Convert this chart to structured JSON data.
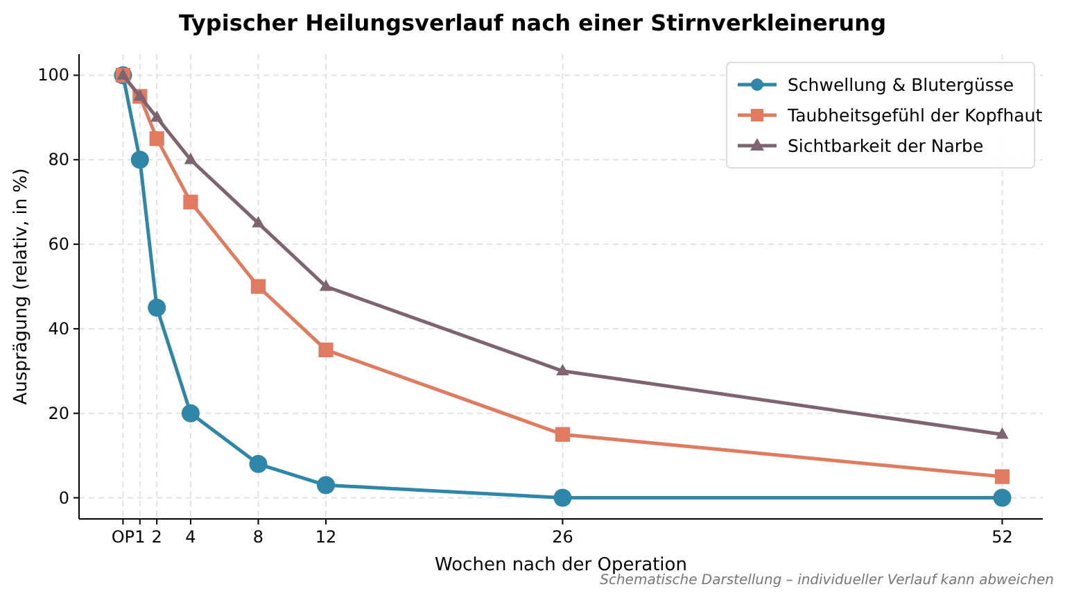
{
  "chart_data": {
    "type": "line",
    "title": "Typischer Heilungsverlauf nach einer Stirnverkleinerung",
    "xlabel": "Wochen nach der Operation",
    "ylabel": "Ausprägung (relativ, in %)",
    "x": [
      0,
      1,
      2,
      4,
      8,
      12,
      26,
      52
    ],
    "series": [
      {
        "name": "Schwellung & Blutergüsse",
        "color": "#2e86a8",
        "marker": "circle",
        "values": [
          100,
          80,
          45,
          20,
          8,
          3,
          0,
          0
        ]
      },
      {
        "name": "Taubheitsgefühl der Kopfhaut",
        "color": "#e07b5f",
        "marker": "square",
        "values": [
          100,
          95,
          85,
          70,
          50,
          35,
          15,
          5
        ]
      },
      {
        "name": "Sichtbarkeit der Narbe",
        "color": "#7d6470",
        "marker": "triangle",
        "values": [
          100,
          95,
          90,
          80,
          65,
          50,
          30,
          15
        ]
      }
    ],
    "xlim": [
      -2.6,
      54.4
    ],
    "ylim": [
      -5,
      105
    ],
    "xticks": [
      {
        "value": 0,
        "label": "OP"
      },
      1,
      2,
      4,
      8,
      12,
      26,
      52
    ],
    "yticks": [
      0,
      20,
      40,
      60,
      80,
      100
    ],
    "grid": true,
    "legend": "top right",
    "line_style": "solid",
    "annotations": [
      "Schematische Darstellung – individueller Verlauf kann abweichen"
    ]
  }
}
